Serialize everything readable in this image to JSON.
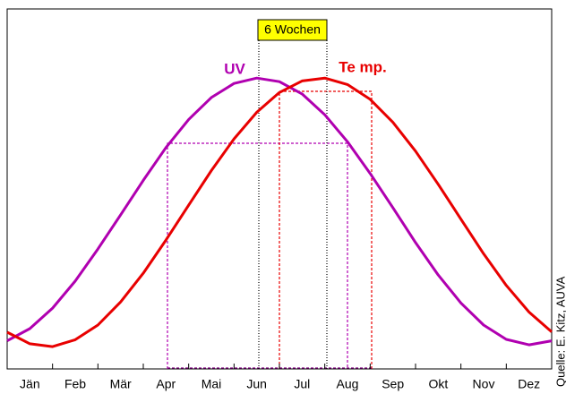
{
  "chart_data": {
    "type": "line",
    "categories": [
      "Jän",
      "Feb",
      "Mär",
      "Apr",
      "Mai",
      "Jun",
      "Jul",
      "Aug",
      "Sep",
      "Okt",
      "Nov",
      "Dez"
    ],
    "x": [
      0,
      0.5,
      1,
      1.5,
      2,
      2.5,
      3,
      3.5,
      4,
      4.5,
      5,
      5.5,
      6,
      6.5,
      7,
      7.5,
      8,
      8.5,
      9,
      9.5,
      10,
      10.5,
      11,
      11.5,
      12
    ],
    "xlim": [
      0,
      12
    ],
    "ylim": [
      0,
      100
    ],
    "series": [
      {
        "name": "UV",
        "color": "#b000b0",
        "values": [
          7.8,
          11.2,
          16.9,
          24.4,
          33.3,
          42.8,
          52.4,
          61.5,
          69.3,
          75.4,
          79.3,
          80.8,
          79.8,
          76.4,
          70.6,
          63.1,
          54.3,
          44.8,
          35.1,
          26.1,
          18.3,
          12.2,
          8.2,
          6.7,
          7.8
        ]
      },
      {
        "name": "Te mp.",
        "color": "#e80000",
        "values": [
          10.2,
          7.0,
          6.2,
          8.1,
          12.2,
          18.6,
          26.6,
          35.8,
          45.5,
          55.1,
          63.9,
          71.3,
          76.8,
          80.0,
          80.8,
          79.0,
          74.9,
          68.5,
          60.5,
          51.3,
          41.6,
          32.0,
          23.2,
          15.8,
          10.3
        ]
      }
    ],
    "annotations": {
      "interval": "6 Wochen",
      "source": "Quelle: E. Kitz, AUVA"
    }
  }
}
